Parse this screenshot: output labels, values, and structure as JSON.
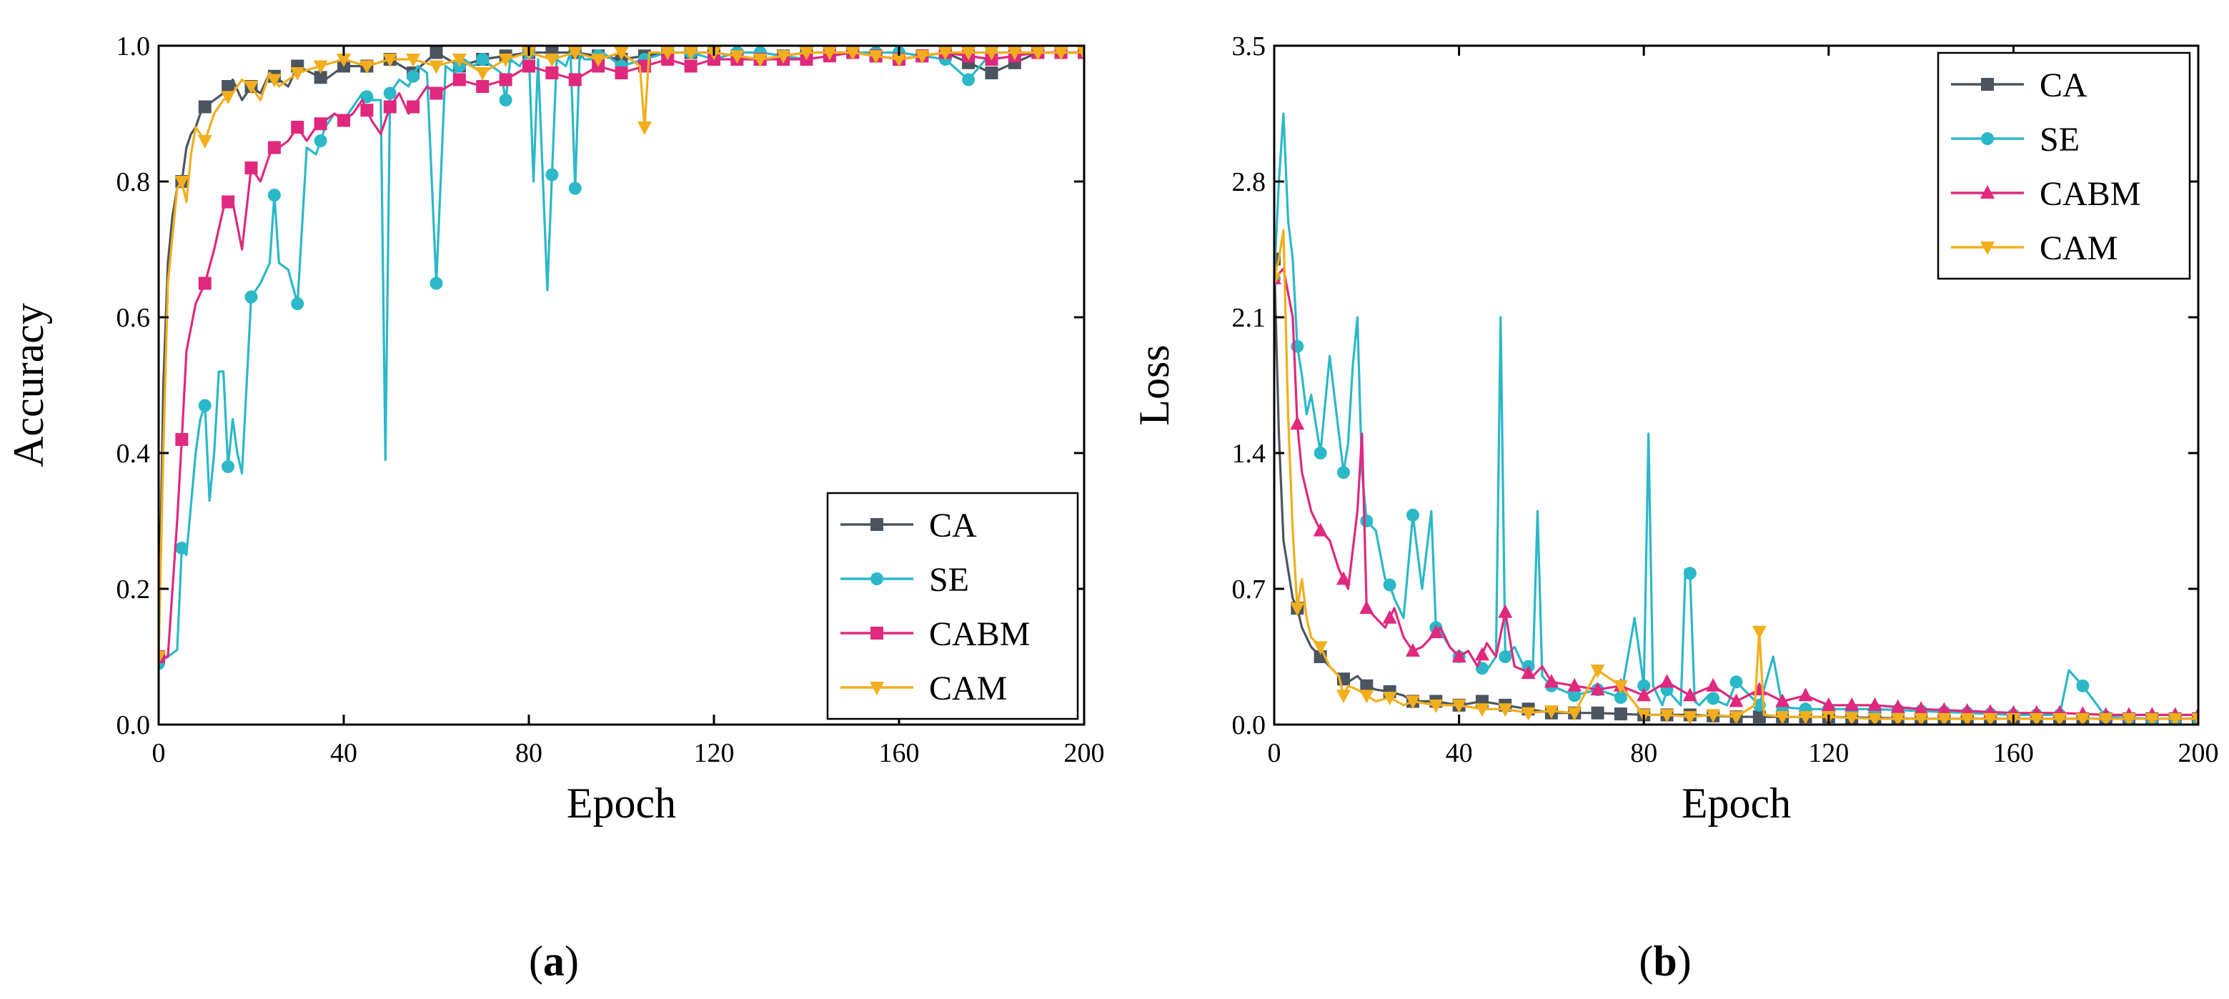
{
  "colors": {
    "CA": "#4a5560",
    "SE": "#2bb8c8",
    "CABM": "#e0287e",
    "CAM": "#f2ae1c"
  },
  "chart_data": [
    {
      "type": "line",
      "panel_label": "a",
      "xlabel": "Epoch",
      "ylabel": "Accuracy",
      "xlim": [
        0,
        200
      ],
      "ylim": [
        0.0,
        1.0
      ],
      "xticks": [
        0,
        40,
        80,
        120,
        160,
        200
      ],
      "yticks": [
        0.0,
        0.2,
        0.4,
        0.6,
        0.8,
        1.0
      ],
      "xtick_labels": [
        "0",
        "40",
        "80",
        "120",
        "160",
        "200"
      ],
      "ytick_labels": [
        "0.0",
        "0.2",
        "0.4",
        "0.6",
        "0.8",
        "1.0"
      ],
      "legend_position": "bottom-right",
      "series": [
        {
          "name": "CA",
          "marker": "square",
          "color": "#4a5560",
          "x": [
            0,
            1,
            2,
            3,
            4,
            5,
            6,
            7,
            8,
            9,
            10,
            12,
            14,
            16,
            18,
            20,
            22,
            24,
            26,
            28,
            30,
            33,
            36,
            40,
            45,
            50,
            55,
            60,
            65,
            70,
            80,
            90,
            100,
            110,
            120,
            130,
            140,
            150,
            160,
            170,
            180,
            190,
            200
          ],
          "y": [
            0.1,
            0.5,
            0.68,
            0.75,
            0.79,
            0.8,
            0.85,
            0.87,
            0.88,
            0.9,
            0.91,
            0.92,
            0.93,
            0.95,
            0.92,
            0.94,
            0.93,
            0.96,
            0.95,
            0.94,
            0.97,
            0.96,
            0.95,
            0.97,
            0.97,
            0.98,
            0.96,
            0.99,
            0.97,
            0.98,
            0.99,
            0.99,
            0.98,
            0.99,
            0.99,
            0.98,
            0.99,
            0.99,
            0.98,
            0.99,
            0.96,
            0.99,
            0.99
          ]
        },
        {
          "name": "SE",
          "marker": "circle",
          "color": "#2bb8c8",
          "x": [
            0,
            2,
            4,
            5,
            6,
            8,
            9,
            10,
            11,
            12,
            13,
            14,
            15,
            16,
            17,
            18,
            20,
            22,
            24,
            25,
            26,
            28,
            30,
            32,
            34,
            36,
            38,
            40,
            42,
            44,
            46,
            48,
            49,
            50,
            52,
            54,
            56,
            58,
            60,
            62,
            64,
            66,
            68,
            70,
            72,
            74,
            75,
            76,
            78,
            80,
            81,
            82,
            84,
            86,
            88,
            89,
            90,
            91,
            92,
            94,
            96,
            98,
            100,
            105,
            110,
            115,
            120,
            125,
            130,
            140,
            150,
            160,
            170,
            175,
            180,
            190,
            200
          ],
          "y": [
            0.09,
            0.1,
            0.11,
            0.26,
            0.25,
            0.4,
            0.45,
            0.47,
            0.33,
            0.4,
            0.52,
            0.52,
            0.38,
            0.45,
            0.4,
            0.37,
            0.63,
            0.65,
            0.68,
            0.78,
            0.68,
            0.67,
            0.62,
            0.85,
            0.84,
            0.88,
            0.9,
            0.89,
            0.91,
            0.93,
            0.92,
            0.92,
            0.39,
            0.93,
            0.95,
            0.94,
            0.97,
            0.96,
            0.65,
            0.97,
            0.96,
            0.98,
            0.97,
            0.98,
            0.97,
            0.96,
            0.92,
            0.98,
            0.97,
            0.99,
            0.8,
            0.98,
            0.64,
            0.98,
            0.97,
            0.99,
            0.79,
            0.99,
            0.98,
            0.98,
            0.99,
            0.98,
            0.97,
            0.98,
            0.99,
            0.99,
            0.98,
            0.99,
            0.99,
            0.98,
            0.99,
            0.99,
            0.98,
            0.95,
            0.99,
            0.99,
            0.99
          ]
        },
        {
          "name": "CABM",
          "marker": "square",
          "color": "#e0287e",
          "x": [
            0,
            2,
            4,
            5,
            6,
            8,
            10,
            12,
            14,
            15,
            16,
            18,
            20,
            22,
            24,
            25,
            26,
            28,
            30,
            32,
            34,
            36,
            38,
            40,
            42,
            44,
            46,
            48,
            50,
            52,
            54,
            56,
            58,
            60,
            65,
            70,
            75,
            80,
            85,
            90,
            95,
            100,
            105,
            110,
            115,
            120,
            130,
            140,
            150,
            160,
            170,
            180,
            190,
            200
          ],
          "y": [
            0.1,
            0.1,
            0.3,
            0.42,
            0.55,
            0.62,
            0.65,
            0.7,
            0.76,
            0.77,
            0.77,
            0.7,
            0.82,
            0.8,
            0.84,
            0.85,
            0.85,
            0.86,
            0.88,
            0.86,
            0.88,
            0.89,
            0.9,
            0.89,
            0.9,
            0.92,
            0.89,
            0.87,
            0.91,
            0.93,
            0.9,
            0.92,
            0.94,
            0.93,
            0.95,
            0.94,
            0.95,
            0.97,
            0.96,
            0.95,
            0.97,
            0.96,
            0.97,
            0.98,
            0.97,
            0.98,
            0.98,
            0.98,
            0.99,
            0.98,
            0.99,
            0.98,
            0.99,
            0.99
          ]
        },
        {
          "name": "CAM",
          "marker": "triangle-down",
          "color": "#f2ae1c",
          "x": [
            0,
            1,
            2,
            3,
            4,
            5,
            6,
            7,
            8,
            10,
            12,
            14,
            16,
            18,
            20,
            22,
            24,
            26,
            28,
            30,
            35,
            40,
            45,
            50,
            55,
            60,
            65,
            70,
            75,
            80,
            85,
            90,
            95,
            100,
            104,
            105,
            106,
            110,
            120,
            130,
            140,
            150,
            160,
            170,
            180,
            190,
            200
          ],
          "y": [
            0.1,
            0.4,
            0.65,
            0.72,
            0.79,
            0.8,
            0.77,
            0.84,
            0.88,
            0.86,
            0.9,
            0.92,
            0.93,
            0.95,
            0.94,
            0.92,
            0.96,
            0.94,
            0.95,
            0.96,
            0.97,
            0.98,
            0.97,
            0.98,
            0.98,
            0.97,
            0.98,
            0.96,
            0.98,
            0.99,
            0.98,
            0.99,
            0.98,
            0.99,
            0.97,
            0.88,
            0.99,
            0.99,
            0.99,
            0.98,
            0.99,
            0.99,
            0.98,
            0.99,
            0.99,
            0.99,
            0.99
          ]
        }
      ]
    },
    {
      "type": "line",
      "panel_label": "b",
      "xlabel": "Epoch",
      "ylabel": "Loss",
      "xlim": [
        0,
        200
      ],
      "ylim": [
        0.0,
        3.5
      ],
      "xticks": [
        0,
        40,
        80,
        120,
        160,
        200
      ],
      "yticks": [
        0.0,
        0.7,
        1.4,
        2.1,
        2.8,
        3.5
      ],
      "xtick_labels": [
        "0",
        "40",
        "80",
        "120",
        "160",
        "200"
      ],
      "ytick_labels": [
        "0.0",
        "0.7",
        "1.4",
        "2.1",
        "2.8",
        "3.5"
      ],
      "legend_position": "top-right",
      "series": [
        {
          "name": "CA",
          "marker": "square",
          "color": "#4a5560",
          "x": [
            0,
            1,
            2,
            3,
            4,
            5,
            6,
            8,
            10,
            12,
            14,
            16,
            18,
            20,
            22,
            25,
            28,
            30,
            35,
            40,
            45,
            50,
            55,
            60,
            70,
            80,
            90,
            100,
            110,
            120,
            140,
            160,
            180,
            200
          ],
          "y": [
            2.4,
            1.5,
            0.95,
            0.8,
            0.65,
            0.6,
            0.5,
            0.4,
            0.35,
            0.3,
            0.25,
            0.22,
            0.25,
            0.2,
            0.18,
            0.17,
            0.15,
            0.12,
            0.12,
            0.1,
            0.12,
            0.1,
            0.08,
            0.06,
            0.06,
            0.05,
            0.05,
            0.04,
            0.04,
            0.04,
            0.03,
            0.03,
            0.03,
            0.03
          ]
        },
        {
          "name": "SE",
          "marker": "circle",
          "color": "#2bb8c8",
          "x": [
            0,
            1,
            2,
            3,
            4,
            5,
            6,
            7,
            8,
            10,
            12,
            14,
            15,
            16,
            17,
            18,
            19,
            20,
            22,
            24,
            25,
            26,
            28,
            30,
            32,
            34,
            35,
            36,
            38,
            40,
            42,
            44,
            46,
            48,
            49,
            50,
            52,
            54,
            56,
            57,
            58,
            60,
            62,
            65,
            70,
            75,
            78,
            80,
            81,
            82,
            84,
            85,
            88,
            89,
            90,
            91,
            92,
            94,
            96,
            98,
            100,
            105,
            108,
            110,
            115,
            120,
            130,
            140,
            150,
            160,
            170,
            172,
            175,
            180,
            190,
            200
          ],
          "y": [
            2.3,
            2.8,
            3.15,
            2.6,
            2.4,
            1.95,
            1.8,
            1.6,
            1.7,
            1.4,
            1.9,
            1.5,
            1.3,
            1.45,
            1.85,
            2.1,
            1.3,
            1.05,
            1.0,
            0.75,
            0.72,
            0.65,
            0.55,
            1.08,
            0.7,
            1.1,
            0.5,
            0.48,
            0.4,
            0.35,
            0.38,
            0.3,
            0.28,
            0.35,
            2.1,
            0.35,
            0.4,
            0.3,
            0.3,
            1.1,
            0.25,
            0.2,
            0.18,
            0.15,
            0.18,
            0.14,
            0.55,
            0.2,
            1.5,
            0.2,
            0.1,
            0.18,
            0.1,
            0.8,
            0.78,
            0.12,
            0.1,
            0.15,
            0.12,
            0.1,
            0.22,
            0.1,
            0.35,
            0.09,
            0.08,
            0.08,
            0.08,
            0.07,
            0.06,
            0.05,
            0.05,
            0.28,
            0.2,
            0.04,
            0.03,
            0.03
          ]
        },
        {
          "name": "CABM",
          "marker": "triangle-up",
          "color": "#e0287e",
          "x": [
            0,
            2,
            4,
            5,
            6,
            8,
            10,
            12,
            14,
            15,
            16,
            18,
            19,
            20,
            22,
            24,
            25,
            26,
            28,
            30,
            32,
            34,
            36,
            38,
            40,
            42,
            44,
            46,
            48,
            50,
            52,
            54,
            56,
            58,
            60,
            65,
            70,
            75,
            80,
            85,
            90,
            95,
            100,
            105,
            110,
            115,
            120,
            130,
            140,
            150,
            160,
            170,
            180,
            190,
            200
          ],
          "y": [
            2.3,
            2.35,
            2.1,
            1.55,
            1.3,
            1.1,
            1.0,
            0.95,
            0.8,
            0.75,
            0.7,
            1.1,
            1.5,
            0.6,
            0.55,
            0.5,
            0.55,
            0.6,
            0.45,
            0.38,
            0.4,
            0.45,
            0.5,
            0.4,
            0.35,
            0.38,
            0.3,
            0.42,
            0.35,
            0.58,
            0.3,
            0.28,
            0.25,
            0.3,
            0.22,
            0.2,
            0.18,
            0.2,
            0.15,
            0.22,
            0.15,
            0.2,
            0.12,
            0.18,
            0.12,
            0.15,
            0.1,
            0.1,
            0.08,
            0.07,
            0.06,
            0.06,
            0.05,
            0.05,
            0.05
          ]
        },
        {
          "name": "CAM",
          "marker": "triangle-down",
          "color": "#f2ae1c",
          "x": [
            0,
            1,
            2,
            3,
            4,
            5,
            6,
            7,
            8,
            10,
            12,
            14,
            15,
            16,
            18,
            20,
            22,
            25,
            28,
            30,
            35,
            40,
            45,
            50,
            55,
            60,
            65,
            70,
            75,
            80,
            85,
            90,
            95,
            100,
            104,
            105,
            106,
            110,
            120,
            130,
            140,
            150,
            160,
            170,
            180,
            190,
            200
          ],
          "y": [
            2.3,
            2.4,
            2.55,
            1.6,
            1.0,
            0.6,
            0.75,
            0.55,
            0.45,
            0.4,
            0.3,
            0.25,
            0.15,
            0.2,
            0.18,
            0.15,
            0.12,
            0.14,
            0.1,
            0.12,
            0.1,
            0.1,
            0.08,
            0.08,
            0.06,
            0.07,
            0.06,
            0.28,
            0.2,
            0.05,
            0.05,
            0.04,
            0.05,
            0.04,
            0.1,
            0.48,
            0.05,
            0.04,
            0.04,
            0.03,
            0.03,
            0.03,
            0.03,
            0.03,
            0.03,
            0.03,
            0.03
          ]
        }
      ]
    }
  ]
}
